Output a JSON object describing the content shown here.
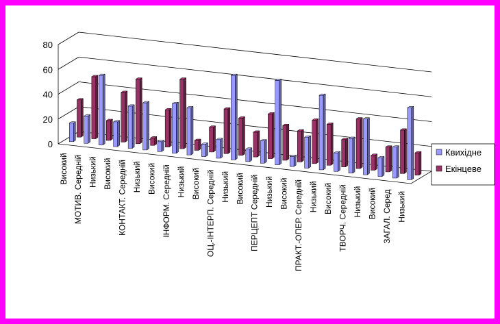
{
  "chart_data": {
    "type": "bar",
    "ylim": [
      0,
      80
    ],
    "yticks": [
      "0",
      "20",
      "40",
      "60",
      "80"
    ],
    "categories": [
      "Високий",
      "МОТИВ. Середній",
      "Низький",
      "Високий",
      "КОНТАКТ. Середній",
      "Низький",
      "Високий",
      "ІНФОРМ. Середній",
      "Низький",
      "Високий",
      "ОЦ.-ІНТЕРП. Середній",
      "Низький",
      "Високий",
      "ПЕРЦЕПТ Середній",
      "Низький",
      "Високий",
      "ПРАКТ.-ОПЕР. Середній",
      "Низький",
      "Високий",
      "ТВОРЧ. Середній",
      "Низький",
      "Високий",
      "ЗАГАЛ. Серед",
      "Низький"
    ],
    "series": [
      {
        "name": "Квихідне",
        "color": "#9999ff",
        "values": [
          15,
          22,
          56,
          20,
          34,
          38,
          8,
          40,
          38,
          10,
          15,
          68,
          10,
          18,
          68,
          8,
          25,
          60,
          15,
          28,
          45,
          15,
          25,
          58
        ]
      },
      {
        "name": "Екінцеве",
        "color": "#993366",
        "values": [
          30,
          50,
          16,
          40,
          52,
          6,
          30,
          56,
          8,
          20,
          36,
          30,
          20,
          36,
          28,
          25,
          35,
          33,
          22,
          40,
          12,
          20,
          35,
          18
        ]
      }
    ],
    "grid": true,
    "legend": "right"
  }
}
